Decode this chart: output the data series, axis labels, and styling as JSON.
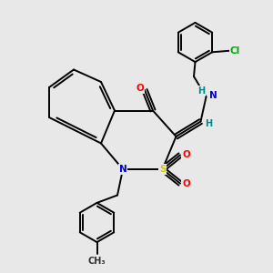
{
  "bg_color": "#e8e8e8",
  "bond_color": "#000000",
  "atom_colors": {
    "N": "#0000cc",
    "S": "#cccc00",
    "O": "#ff0000",
    "Cl": "#00aa00",
    "H": "#008888",
    "C": "#000000"
  },
  "bond_lw": 1.4,
  "figsize": [
    3.0,
    3.0
  ],
  "dpi": 100
}
